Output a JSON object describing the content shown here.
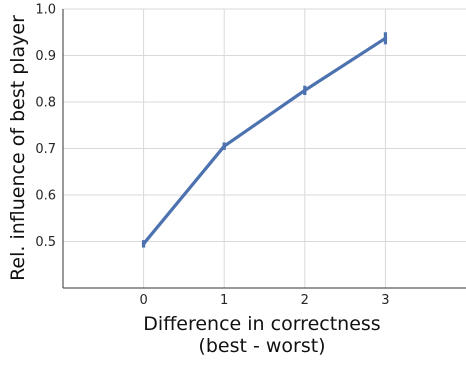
{
  "chart_data": {
    "type": "line",
    "title": "",
    "xlabel": [
      "Difference in correctness",
      "(best - worst)"
    ],
    "ylabel": "Rel. influence of best player",
    "x": [
      0,
      1,
      2,
      3
    ],
    "x_ticks": [
      "0",
      "1",
      "2",
      "3"
    ],
    "xlim": [
      -1,
      4
    ],
    "ylim": [
      0.4,
      1.0
    ],
    "y_ticks": [
      "0.5",
      "0.6",
      "0.7",
      "0.8",
      "0.9",
      "1.0"
    ],
    "grid": true,
    "series": [
      {
        "values": [
          0.495,
          0.705,
          0.825,
          0.937
        ],
        "error": [
          0.008,
          0.008,
          0.01,
          0.013
        ],
        "color": "#4c72b0"
      }
    ]
  }
}
